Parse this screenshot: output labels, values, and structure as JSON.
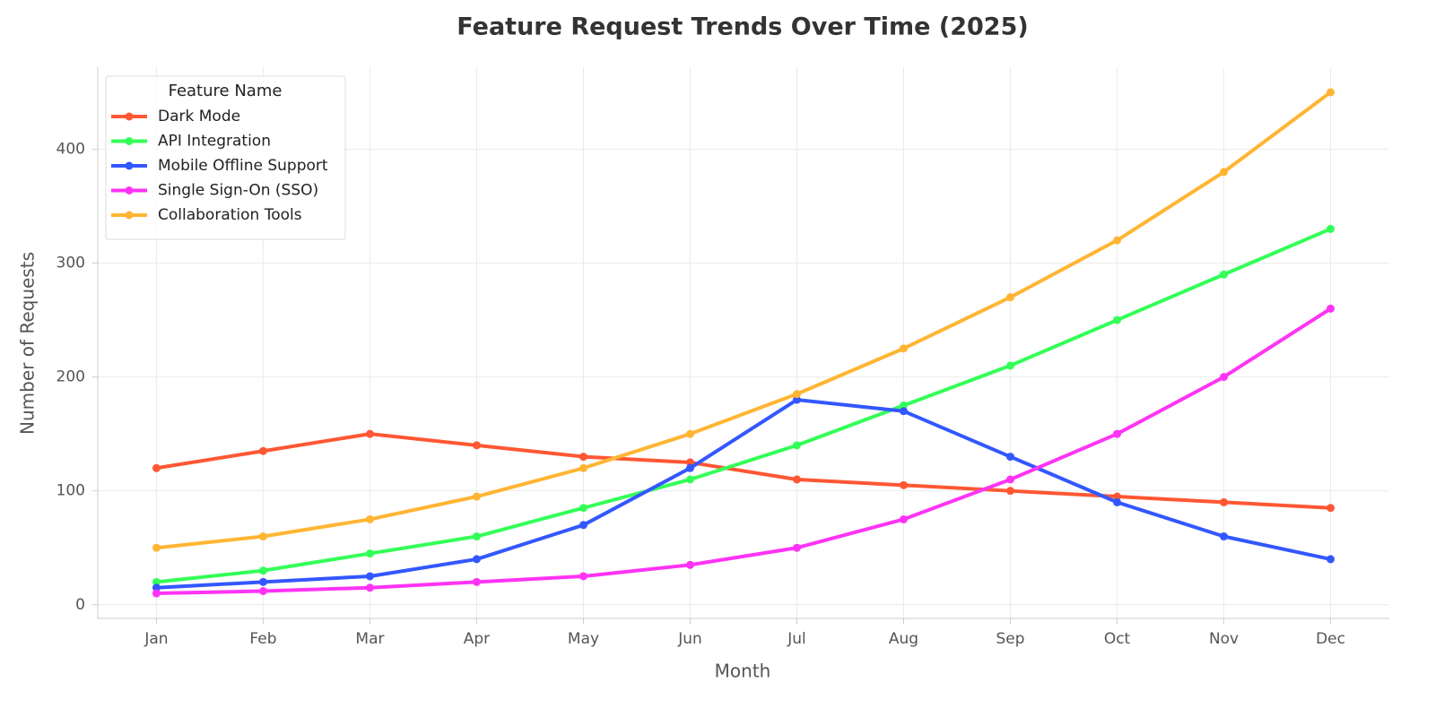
{
  "chart_data": {
    "type": "line",
    "title": "Feature Request Trends Over Time (2025)",
    "x_label": "Month",
    "y_label": "Number of Requests",
    "legend_title": "Feature Name",
    "legend": "upper left",
    "grid": true,
    "categories": [
      "Jan",
      "Feb",
      "Mar",
      "Apr",
      "May",
      "Jun",
      "Jul",
      "Aug",
      "Sep",
      "Oct",
      "Nov",
      "Dec"
    ],
    "ylim": [
      -12,
      472
    ],
    "yticks": [
      0,
      100,
      200,
      300,
      400
    ],
    "series": [
      {
        "name": "Dark Mode",
        "color": "#ff5733",
        "values": [
          120,
          135,
          150,
          140,
          130,
          125,
          110,
          105,
          100,
          95,
          90,
          85
        ]
      },
      {
        "name": "API Integration",
        "color": "#33ff57",
        "values": [
          20,
          30,
          45,
          60,
          85,
          110,
          140,
          175,
          210,
          250,
          290,
          330
        ]
      },
      {
        "name": "Mobile Offline Support",
        "color": "#3357ff",
        "values": [
          15,
          20,
          25,
          40,
          70,
          120,
          180,
          170,
          130,
          90,
          60,
          40
        ]
      },
      {
        "name": "Single Sign-On (SSO)",
        "color": "#ff33f5",
        "values": [
          10,
          12,
          15,
          20,
          25,
          35,
          50,
          75,
          110,
          150,
          200,
          260
        ]
      },
      {
        "name": "Collaboration Tools",
        "color": "#ffb533",
        "values": [
          50,
          60,
          75,
          95,
          120,
          150,
          185,
          225,
          270,
          320,
          380,
          450
        ]
      }
    ]
  }
}
